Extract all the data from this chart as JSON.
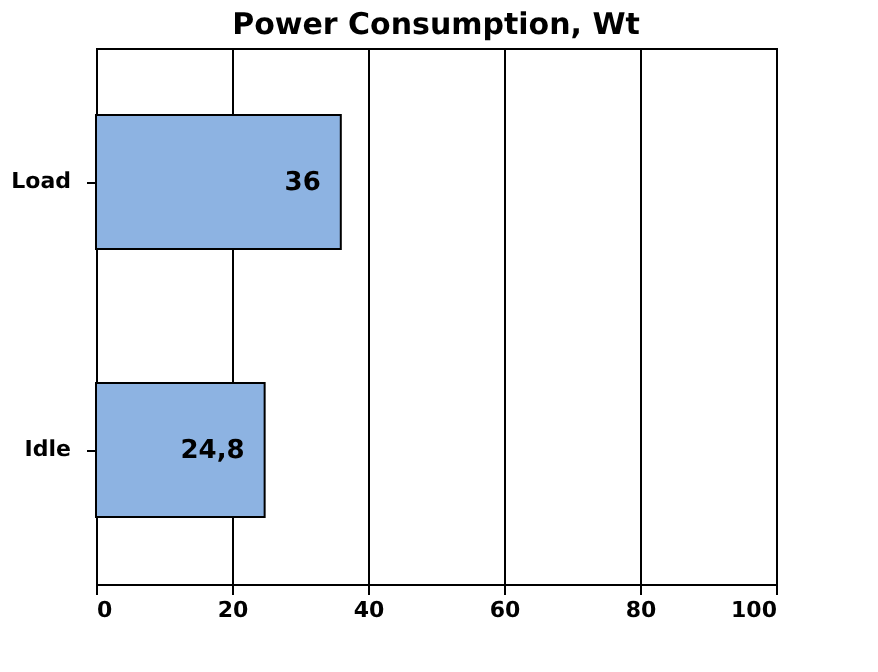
{
  "chart_data": {
    "type": "bar",
    "orientation": "horizontal",
    "title": "Power Consumption, Wt",
    "categories": [
      "Load",
      "Idle"
    ],
    "series": [
      {
        "color": "#8db3e2",
        "values": [
          36,
          24.8
        ],
        "value_labels": [
          "36",
          "24,8"
        ]
      }
    ],
    "xlim": [
      0,
      100
    ],
    "xticks": [
      0,
      20,
      40,
      60,
      80,
      100
    ],
    "grid": "x"
  }
}
